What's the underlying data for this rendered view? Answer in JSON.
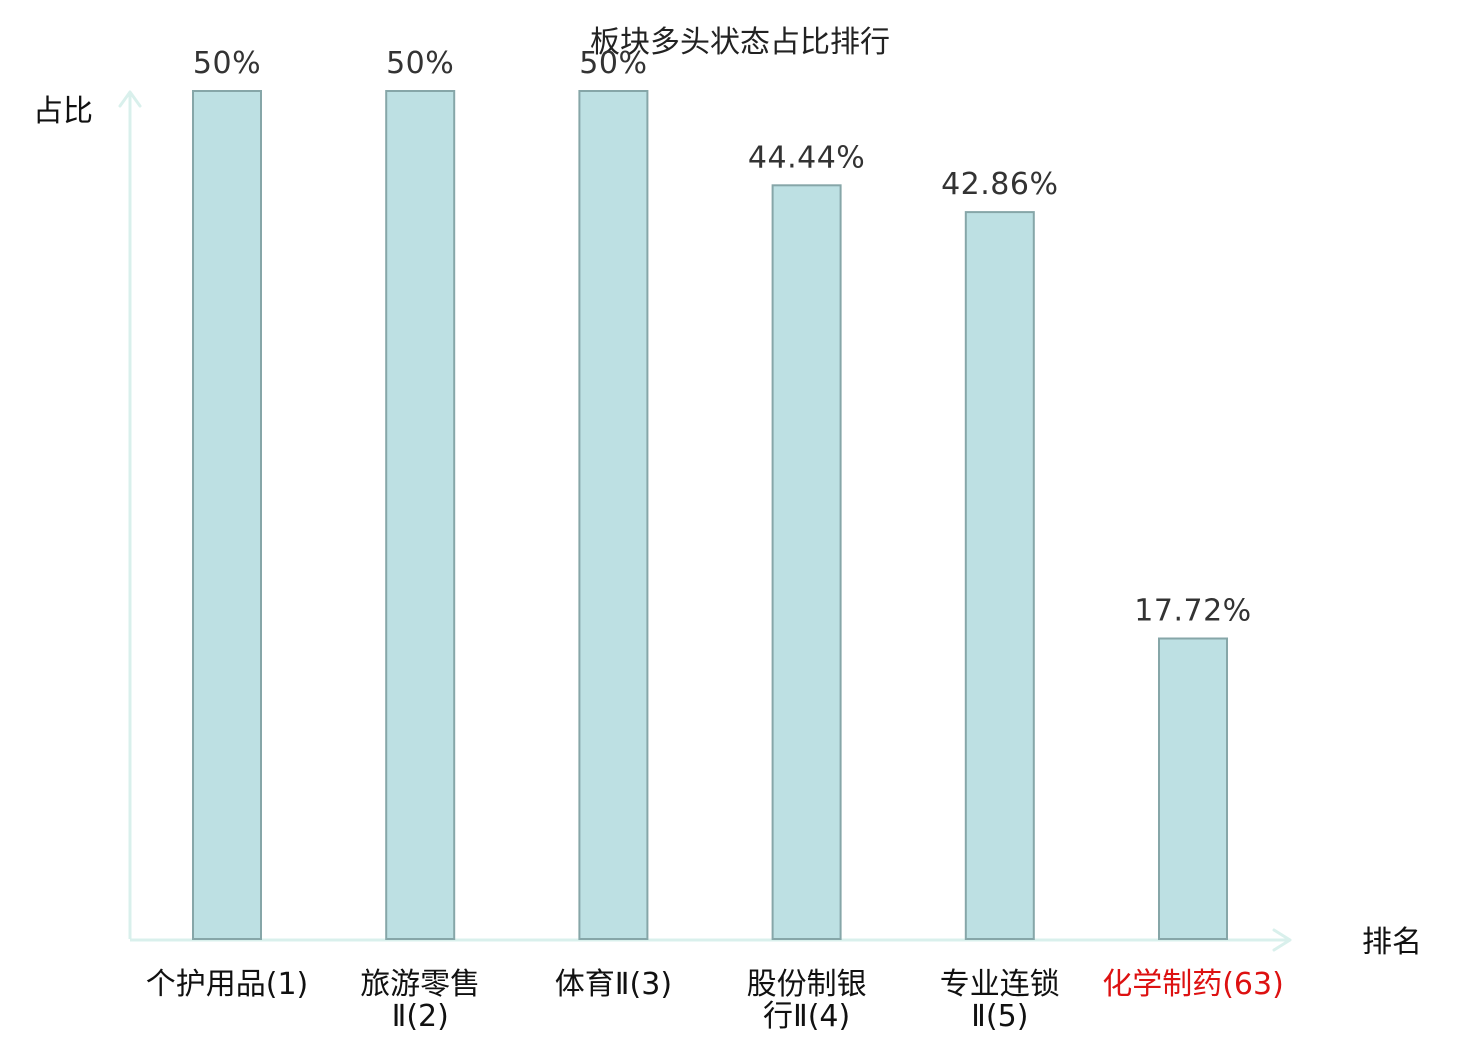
{
  "chart_data": {
    "type": "bar",
    "title": "板块多头状态占比排行",
    "ylabel": "占比",
    "xlabel": "排名",
    "ylim": [
      0,
      50
    ],
    "grid": false,
    "categories": [
      [
        "个护用品(1)"
      ],
      [
        "旅游零售",
        "Ⅱ(2)"
      ],
      [
        "体育Ⅱ(3)"
      ],
      [
        "股份制银",
        "行Ⅱ(4)"
      ],
      [
        "专业连锁",
        "Ⅱ(5)"
      ],
      [
        "化学制药(63)"
      ]
    ],
    "values": [
      50,
      50,
      50,
      44.44,
      42.86,
      17.72
    ],
    "value_labels": [
      "50%",
      "50%",
      "50%",
      "44.44%",
      "42.86%",
      "17.72%"
    ],
    "highlight_index": 5,
    "colors": {
      "bar_fill": "#bde0e3",
      "bar_stroke": "#86a6a8",
      "axis": "#d9f0ec",
      "text": "#111111",
      "highlight": "#dd1111"
    }
  }
}
